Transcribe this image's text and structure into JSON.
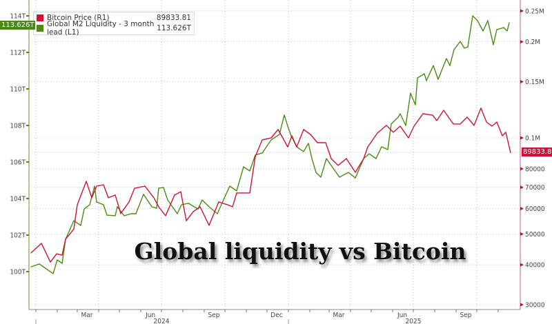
{
  "chart_data": {
    "type": "line",
    "title": "Global liquidity vs Bitcoin",
    "x_type": "date",
    "xlim": [
      "2023-12-25",
      "2025-11-19"
    ],
    "x_tick_labels": [
      {
        "label": "Mar",
        "date": "2024-03-15"
      },
      {
        "label": "Jun",
        "date": "2024-06-15"
      },
      {
        "label": "Sep",
        "date": "2024-09-15"
      },
      {
        "label": "Dec",
        "date": "2024-12-15"
      },
      {
        "label": "Mar",
        "date": "2025-03-15"
      },
      {
        "label": "Jun",
        "date": "2025-06-15"
      },
      {
        "label": "Sep",
        "date": "2025-09-15"
      }
    ],
    "year_labels": [
      {
        "label": "2024",
        "date": "2024-07-01"
      },
      {
        "label": "2025",
        "date": "2025-07-01"
      }
    ],
    "y_left": {
      "scale": "linear",
      "lim": [
        98,
        114.5
      ],
      "ticks": [
        100,
        102,
        104,
        106,
        108,
        110,
        112,
        114
      ],
      "tick_labels": [
        "100T",
        "102T",
        "104T",
        "106T",
        "108T",
        "110T",
        "112T",
        "114T"
      ]
    },
    "y_right": {
      "scale": "log",
      "lim": [
        30000,
        250000
      ],
      "ticks": [
        30000,
        40000,
        50000,
        60000,
        70000,
        80000,
        100000,
        150000,
        200000,
        250000
      ],
      "tick_labels": [
        "30000",
        "40000",
        "50000",
        "60000",
        "70000",
        "80000",
        "0.1M",
        "0.15M",
        "0.2M",
        "0.25M"
      ],
      "grid_values": [
        90000
      ]
    },
    "grid": true,
    "legend_placement": "top-left",
    "series": [
      {
        "name": "Bitcoin Price (R1)",
        "axis": "right",
        "color": "#cc1236",
        "last_value": "89833.81",
        "points": [
          [
            "2023-12-25",
            43600
          ],
          [
            "2024-01-09",
            46700
          ],
          [
            "2024-01-22",
            40800
          ],
          [
            "2024-01-31",
            43300
          ],
          [
            "2024-02-08",
            42900
          ],
          [
            "2024-02-13",
            48100
          ],
          [
            "2024-02-25",
            51800
          ],
          [
            "2024-03-01",
            61700
          ],
          [
            "2024-03-14",
            73100
          ],
          [
            "2024-03-22",
            64900
          ],
          [
            "2024-03-29",
            70600
          ],
          [
            "2024-04-08",
            71300
          ],
          [
            "2024-04-15",
            64900
          ],
          [
            "2024-04-25",
            66200
          ],
          [
            "2024-05-03",
            57900
          ],
          [
            "2024-05-15",
            63000
          ],
          [
            "2024-05-23",
            69500
          ],
          [
            "2024-06-07",
            70600
          ],
          [
            "2024-06-20",
            64900
          ],
          [
            "2024-06-27",
            60800
          ],
          [
            "2024-07-07",
            57000
          ],
          [
            "2024-07-20",
            66200
          ],
          [
            "2024-07-29",
            67800
          ],
          [
            "2024-08-06",
            55000
          ],
          [
            "2024-08-16",
            58700
          ],
          [
            "2024-08-26",
            60800
          ],
          [
            "2024-09-08",
            53200
          ],
          [
            "2024-09-22",
            63000
          ],
          [
            "2024-10-05",
            61700
          ],
          [
            "2024-10-12",
            60800
          ],
          [
            "2024-10-18",
            67200
          ],
          [
            "2024-10-27",
            67200
          ],
          [
            "2024-11-06",
            67200
          ],
          [
            "2024-11-14",
            87400
          ],
          [
            "2024-11-24",
            98500
          ],
          [
            "2024-12-07",
            100000
          ],
          [
            "2024-12-17",
            106200
          ],
          [
            "2024-12-31",
            93700
          ],
          [
            "2025-01-06",
            101500
          ],
          [
            "2025-01-13",
            93700
          ],
          [
            "2025-01-23",
            106200
          ],
          [
            "2025-02-02",
            102500
          ],
          [
            "2025-02-12",
            96600
          ],
          [
            "2025-02-24",
            96600
          ],
          [
            "2025-03-04",
            86100
          ],
          [
            "2025-03-14",
            82000
          ],
          [
            "2025-03-26",
            86100
          ],
          [
            "2025-04-08",
            78000
          ],
          [
            "2025-04-20",
            86100
          ],
          [
            "2025-04-26",
            93700
          ],
          [
            "2025-05-10",
            103600
          ],
          [
            "2025-05-23",
            109400
          ],
          [
            "2025-06-02",
            104100
          ],
          [
            "2025-06-12",
            108800
          ],
          [
            "2025-06-24",
            100000
          ],
          [
            "2025-07-02",
            108800
          ],
          [
            "2025-07-15",
            119000
          ],
          [
            "2025-07-29",
            117800
          ],
          [
            "2025-08-04",
            113300
          ],
          [
            "2025-08-14",
            122000
          ],
          [
            "2025-08-28",
            110500
          ],
          [
            "2025-09-07",
            110500
          ],
          [
            "2025-09-17",
            116100
          ],
          [
            "2025-09-27",
            109400
          ],
          [
            "2025-10-07",
            123900
          ],
          [
            "2025-10-15",
            112100
          ],
          [
            "2025-10-23",
            108800
          ],
          [
            "2025-10-30",
            112100
          ],
          [
            "2025-11-07",
            101500
          ],
          [
            "2025-11-12",
            104100
          ],
          [
            "2025-11-19",
            89833.81
          ]
        ]
      },
      {
        "name": "Global M2 Liquidity - 3 month lead (L1)",
        "axis": "left",
        "color": "#4a8a12",
        "last_value": "113.626T",
        "points": [
          [
            "2023-12-25",
            100.26
          ],
          [
            "2024-01-06",
            100.42
          ],
          [
            "2024-01-26",
            99.89
          ],
          [
            "2024-02-01",
            100.64
          ],
          [
            "2024-02-08",
            100.45
          ],
          [
            "2024-02-13",
            101.77
          ],
          [
            "2024-02-25",
            102.79
          ],
          [
            "2024-03-06",
            102.53
          ],
          [
            "2024-03-11",
            103.43
          ],
          [
            "2024-03-19",
            103.66
          ],
          [
            "2024-03-26",
            104.68
          ],
          [
            "2024-03-29",
            103.81
          ],
          [
            "2024-04-08",
            103.66
          ],
          [
            "2024-04-13",
            103.09
          ],
          [
            "2024-04-25",
            103.06
          ],
          [
            "2024-04-28",
            103.55
          ],
          [
            "2024-05-08",
            103.06
          ],
          [
            "2024-05-18",
            103.17
          ],
          [
            "2024-05-25",
            103.17
          ],
          [
            "2024-06-05",
            104.23
          ],
          [
            "2024-06-17",
            103.55
          ],
          [
            "2024-06-24",
            103.47
          ],
          [
            "2024-06-27",
            104.57
          ],
          [
            "2024-07-04",
            104.6
          ],
          [
            "2024-07-10",
            103.92
          ],
          [
            "2024-07-24",
            103.17
          ],
          [
            "2024-07-30",
            103.66
          ],
          [
            "2024-08-09",
            103.74
          ],
          [
            "2024-08-23",
            103.43
          ],
          [
            "2024-08-29",
            103.92
          ],
          [
            "2024-09-08",
            103.55
          ],
          [
            "2024-09-20",
            103.17
          ],
          [
            "2024-10-02",
            104.19
          ],
          [
            "2024-10-08",
            104.68
          ],
          [
            "2024-10-18",
            104.42
          ],
          [
            "2024-10-28",
            105.74
          ],
          [
            "2024-11-06",
            105.51
          ],
          [
            "2024-11-14",
            106.38
          ],
          [
            "2024-11-24",
            106.49
          ],
          [
            "2024-12-07",
            107.21
          ],
          [
            "2024-12-19",
            107.51
          ],
          [
            "2024-12-26",
            108.57
          ],
          [
            "2024-12-31",
            107.96
          ],
          [
            "2025-01-05",
            107.43
          ],
          [
            "2025-01-13",
            106.83
          ],
          [
            "2025-01-23",
            106.57
          ],
          [
            "2025-01-30",
            107.02
          ],
          [
            "2025-02-04",
            106.19
          ],
          [
            "2025-02-10",
            105.43
          ],
          [
            "2025-02-17",
            105.17
          ],
          [
            "2025-02-25",
            106.19
          ],
          [
            "2025-03-04",
            105.81
          ],
          [
            "2025-03-16",
            105.17
          ],
          [
            "2025-03-29",
            105.43
          ],
          [
            "2025-04-08",
            105.13
          ],
          [
            "2025-04-20",
            106.19
          ],
          [
            "2025-04-28",
            106.45
          ],
          [
            "2025-05-08",
            106.19
          ],
          [
            "2025-05-16",
            106.83
          ],
          [
            "2025-05-25",
            106.68
          ],
          [
            "2025-05-30",
            108.08
          ],
          [
            "2025-06-09",
            108.45
          ],
          [
            "2025-06-12",
            108.64
          ],
          [
            "2025-06-20",
            108.0
          ],
          [
            "2025-06-27",
            109.77
          ],
          [
            "2025-07-04",
            109.13
          ],
          [
            "2025-07-07",
            110.6
          ],
          [
            "2025-07-17",
            110.83
          ],
          [
            "2025-07-20",
            110.45
          ],
          [
            "2025-07-30",
            111.28
          ],
          [
            "2025-08-06",
            110.53
          ],
          [
            "2025-08-18",
            111.66
          ],
          [
            "2025-08-23",
            111.28
          ],
          [
            "2025-08-29",
            112.15
          ],
          [
            "2025-09-07",
            112.6
          ],
          [
            "2025-09-13",
            112.23
          ],
          [
            "2025-09-18",
            112.3
          ],
          [
            "2025-09-25",
            114.0
          ],
          [
            "2025-10-02",
            113.74
          ],
          [
            "2025-10-10",
            113.17
          ],
          [
            "2025-10-17",
            113.74
          ],
          [
            "2025-10-25",
            112.42
          ],
          [
            "2025-10-30",
            113.25
          ],
          [
            "2025-11-09",
            113.36
          ],
          [
            "2025-11-14",
            113.17
          ],
          [
            "2025-11-17",
            113.626
          ]
        ]
      }
    ]
  },
  "legend": {
    "items": [
      {
        "label": "Bitcoin Price (R1)",
        "value": "89833.81",
        "color": "#cc1236"
      },
      {
        "label": "Global M2 Liquidity - 3 month lead (L1)",
        "value": "113.626T",
        "color": "#4a8a12"
      }
    ]
  },
  "tags": {
    "left": "113.626T",
    "right": "89833.81"
  }
}
